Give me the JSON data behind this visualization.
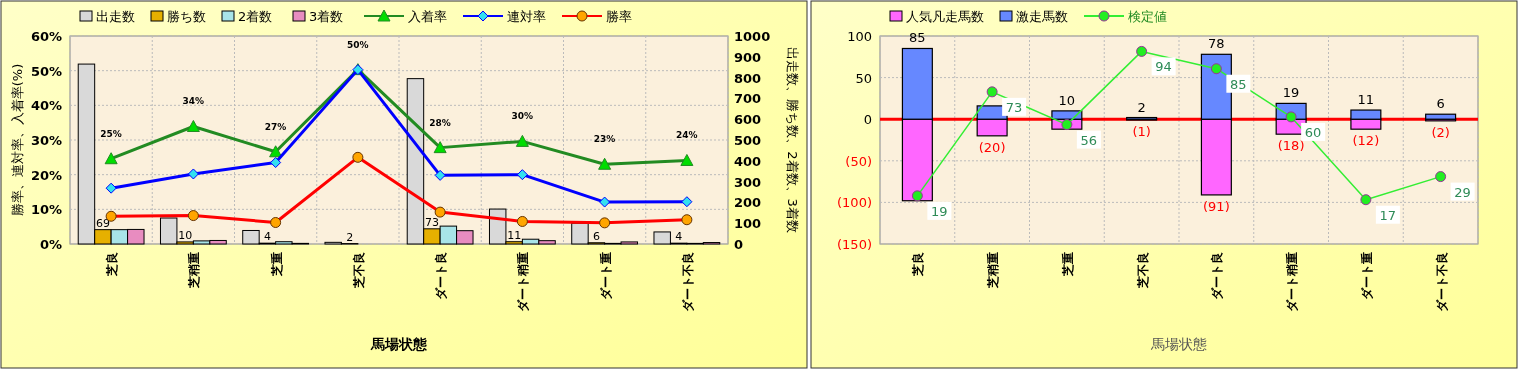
{
  "chart_data": [
    {
      "type": "bar",
      "xlabel": "馬場状態",
      "ylabel": "勝率、連対率、入着率(%)",
      "y2label": "出走数、勝ち数、2着数、3着数",
      "categories": [
        "芝良",
        "芝稍重",
        "芝重",
        "芝不良",
        "ダート良",
        "ダート稍重",
        "ダート重",
        "ダート不良"
      ],
      "series": [
        {
          "name": "出走数",
          "color": "#d9d9d9",
          "axis": "y2",
          "values": [
            865,
            125,
            65,
            8,
            795,
            168,
            100,
            58
          ]
        },
        {
          "name": "勝ち数",
          "color": "#e6b000",
          "axis": "y2",
          "values": [
            69,
            10,
            4,
            2,
            73,
            11,
            6,
            4
          ],
          "value_labels": [
            "69",
            "10",
            "4",
            "2",
            "73",
            "11",
            "6",
            "4"
          ]
        },
        {
          "name": "2着数",
          "color": "#a8e4e8",
          "axis": "y2",
          "values": [
            69,
            15,
            11,
            null,
            86,
            23,
            3,
            3
          ]
        },
        {
          "name": "3着数",
          "color": "#e88cc0",
          "axis": "y2",
          "values": [
            70,
            17,
            3,
            0,
            64,
            16,
            10,
            7
          ]
        },
        {
          "name": "入着率",
          "type": "line",
          "color": "#228b22",
          "marker": "triangle",
          "axis": "y",
          "values": [
            24.6,
            33.9,
            26.6,
            50.3,
            27.8,
            29.6,
            23,
            24.1
          ],
          "value_labels": [
            "25%",
            "34%",
            "27%",
            "50%",
            "28%",
            "30%",
            "23%",
            "24%"
          ]
        },
        {
          "name": "連対率",
          "type": "line",
          "color": "#0000ff",
          "marker": "diamond",
          "axis": "y",
          "values": [
            16.1,
            20.2,
            23.5,
            50.3,
            19.8,
            20,
            12.1,
            12.2
          ]
        },
        {
          "name": "勝率",
          "type": "line",
          "color": "#ff0000",
          "marker": "circle",
          "axis": "y",
          "values": [
            8,
            8.2,
            6.2,
            25,
            9.2,
            6.5,
            6.1,
            7
          ]
        }
      ],
      "ylim": [
        0,
        60
      ],
      "yticks": [
        {
          "value": 0,
          "label": "0%"
        },
        {
          "value": 10,
          "label": "10%"
        },
        {
          "value": 20,
          "label": "20%"
        },
        {
          "value": 30,
          "label": "30%"
        },
        {
          "value": 40,
          "label": "40%"
        },
        {
          "value": 50,
          "label": "50%"
        },
        {
          "value": 60,
          "label": "60%"
        }
      ],
      "y2lim": [
        0,
        1000
      ],
      "y2ticks": [
        0,
        100,
        200,
        300,
        400,
        500,
        600,
        700,
        800,
        900,
        1000
      ],
      "grid": true,
      "legend": "top"
    },
    {
      "type": "bar",
      "stacked": true,
      "xlabel": "馬場状態",
      "categories": [
        "芝良",
        "芝稍重",
        "芝重",
        "芝不良",
        "ダート良",
        "ダート稍重",
        "ダート重",
        "ダート不良"
      ],
      "series": [
        {
          "name": "人気凡走馬数",
          "color": "#ff66ff",
          "values": [
            -98,
            -20,
            -12,
            -1,
            -91,
            -18,
            -12,
            -2
          ],
          "value_labels": [
            null,
            "(20)",
            null,
            "(1)",
            "(91)",
            "(18)",
            "(12)",
            "(2)"
          ]
        },
        {
          "name": "激走馬数",
          "color": "#6688ff",
          "values": [
            85,
            16,
            10,
            2,
            78,
            19,
            11,
            6
          ],
          "value_labels": [
            "85",
            null,
            "10",
            "2",
            "78",
            "19",
            "11",
            "6"
          ]
        },
        {
          "name": "検定値",
          "type": "line",
          "color": "#33ee33",
          "marker": "circle",
          "axis": "y2",
          "values": [
            19,
            73,
            56,
            94,
            85,
            60,
            17,
            29
          ],
          "value_labels": [
            "19",
            "73",
            "56",
            "94",
            "85",
            "60",
            "17",
            "29"
          ]
        }
      ],
      "y2lim": [
        -6,
        102
      ],
      "ylim": [
        -150,
        100
      ],
      "yticks": [
        100,
        50,
        0,
        {
          "value": -50,
          "label": "(50)"
        },
        {
          "value": -100,
          "label": "(100)"
        },
        {
          "value": -150,
          "label": "(150)"
        }
      ],
      "ref_lines": [
        {
          "axis": "y",
          "value": 0,
          "color": "#ff0000"
        }
      ],
      "grid": true,
      "legend": "top"
    }
  ]
}
